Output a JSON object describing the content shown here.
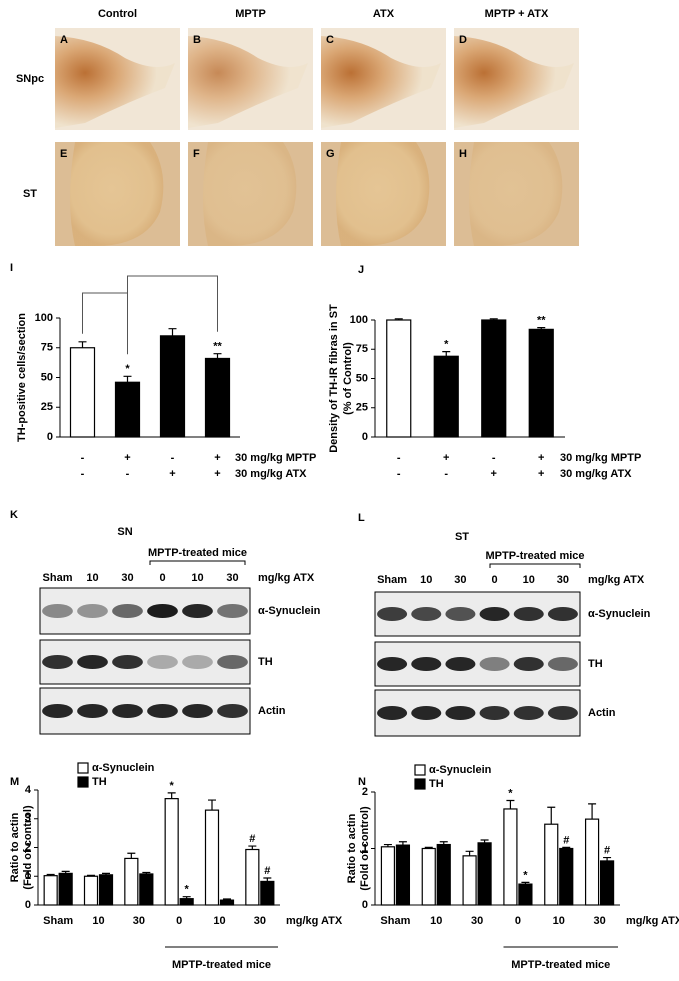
{
  "micrographs": {
    "columns": [
      "Control",
      "MPTP",
      "ATX",
      "MPTP + ATX"
    ],
    "rows": [
      "SNpc",
      "ST"
    ],
    "panel_labels": [
      [
        "A",
        "B",
        "C",
        "D"
      ],
      [
        "E",
        "F",
        "G",
        "H"
      ]
    ]
  },
  "blots": [
    {
      "panel_label": "K",
      "title": "SN",
      "group_label": "MPTP-treated mice",
      "lanes": [
        "Sham",
        "10",
        "30",
        "0",
        "10",
        "30"
      ],
      "lane_unit": "mg/kg ATX",
      "proteins": [
        "α-Synuclein",
        "TH",
        "Actin"
      ]
    },
    {
      "panel_label": "L",
      "title": "ST",
      "group_label": "MPTP-treated mice",
      "lanes": [
        "Sham",
        "10",
        "30",
        "0",
        "10",
        "30"
      ],
      "lane_unit": "mg/kg ATX",
      "proteins": [
        "α-Synuclein",
        "TH",
        "Actin"
      ]
    }
  ],
  "chart_data": [
    {
      "type": "bar",
      "panel_label": "I",
      "ylabel": "TH-positive cells/section",
      "ylim": [
        0,
        100
      ],
      "yticks": [
        0,
        25,
        50,
        75,
        100
      ],
      "values": [
        75,
        46,
        85,
        66
      ],
      "errors": [
        5,
        5,
        6,
        4
      ],
      "colors": [
        "#ffffff",
        "#000000",
        "#000000",
        "#000000"
      ],
      "significance": [
        null,
        "*",
        null,
        "**"
      ],
      "treatments": [
        {
          "label": "30 mg/kg MPTP",
          "signs": [
            "-",
            "+",
            "-",
            "+"
          ]
        },
        {
          "label": "30 mg/kg ATX",
          "signs": [
            "-",
            "-",
            "+",
            "+"
          ]
        }
      ]
    },
    {
      "type": "bar",
      "panel_label": "J",
      "ylabel": [
        "Density of TH-IR fibras in ST",
        "(% of Control)"
      ],
      "ylim": [
        0,
        100
      ],
      "yticks": [
        0,
        25,
        50,
        75,
        100
      ],
      "values": [
        100,
        69,
        100,
        92
      ],
      "errors": [
        1,
        4,
        1,
        1.5
      ],
      "colors": [
        "#ffffff",
        "#000000",
        "#000000",
        "#000000"
      ],
      "significance": [
        null,
        "*",
        null,
        "**"
      ],
      "treatments": [
        {
          "label": "30 mg/kg MPTP",
          "signs": [
            "-",
            "+",
            "-",
            "+"
          ]
        },
        {
          "label": "30 mg/kg ATX",
          "signs": [
            "-",
            "-",
            "+",
            "+"
          ]
        }
      ]
    },
    {
      "type": "grouped_bar",
      "panel_label": "M",
      "ylabel": [
        "Ratio to actin",
        "(Fold of control)"
      ],
      "ylim": [
        0,
        4
      ],
      "yticks": [
        0,
        1,
        2,
        3,
        4
      ],
      "categories": [
        "Sham",
        "10",
        "30",
        "0",
        "10",
        "30"
      ],
      "x_unit_label": "mg/kg ATX",
      "group_label": "MPTP-treated mice",
      "series": [
        {
          "name": "α-Synuclein",
          "color": "#ffffff",
          "values": [
            1.02,
            1.0,
            1.62,
            3.7,
            3.3,
            1.93
          ],
          "errors": [
            0.04,
            0.03,
            0.18,
            0.2,
            0.35,
            0.12
          ],
          "significance": [
            null,
            null,
            null,
            "*",
            null,
            "#"
          ]
        },
        {
          "name": "TH",
          "color": "#000000",
          "values": [
            1.1,
            1.05,
            1.08,
            0.22,
            0.17,
            0.82
          ],
          "errors": [
            0.07,
            0.05,
            0.05,
            0.07,
            0.04,
            0.12
          ],
          "significance": [
            null,
            null,
            null,
            "*",
            null,
            "#"
          ]
        }
      ]
    },
    {
      "type": "grouped_bar",
      "panel_label": "N",
      "ylabel": [
        "Ratio to actin",
        "(Fold of control)"
      ],
      "ylim": [
        0,
        2
      ],
      "yticks": [
        0,
        1,
        2
      ],
      "categories": [
        "Sham",
        "10",
        "30",
        "0",
        "10",
        "30"
      ],
      "x_unit_label": "mg/kg ATX",
      "group_label": "MPTP-treated mice",
      "series": [
        {
          "name": "α-Synuclein",
          "color": "#ffffff",
          "values": [
            1.03,
            1.0,
            0.87,
            1.7,
            1.43,
            1.52
          ],
          "errors": [
            0.04,
            0.02,
            0.08,
            0.15,
            0.3,
            0.27
          ],
          "significance": [
            null,
            null,
            null,
            "*",
            null,
            null
          ]
        },
        {
          "name": "TH",
          "color": "#000000",
          "values": [
            1.06,
            1.07,
            1.1,
            0.37,
            1.0,
            0.78
          ],
          "errors": [
            0.06,
            0.05,
            0.05,
            0.03,
            0.02,
            0.06
          ],
          "significance": [
            null,
            null,
            null,
            "*",
            "#",
            "#"
          ]
        }
      ]
    }
  ]
}
